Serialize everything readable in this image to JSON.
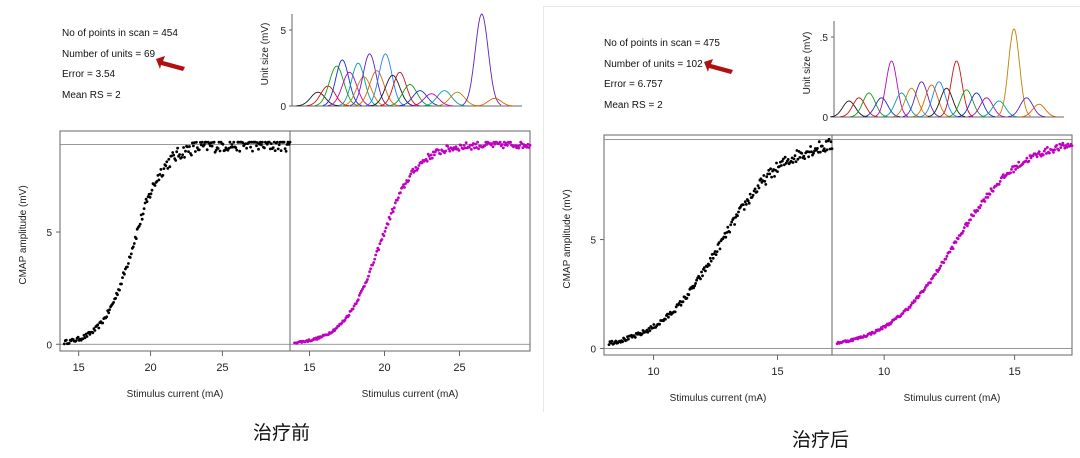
{
  "panels": [
    {
      "caption": "治疗前",
      "info": [
        "No of points in scan = 454",
        "Number of units = 69",
        "Error = 3.54",
        "Mean RS = 2"
      ],
      "inset": {
        "ylabel": "Unit size (mV)",
        "yticks": [
          "5",
          "0"
        ]
      },
      "main": {
        "ylabel": "CMAP amplitude (mV)",
        "xlabel_left": "Stimulus current (mA)",
        "xlabel_right": "Stimulus current (mA)",
        "yticks": [
          "0",
          "5"
        ],
        "xticks_left": [
          "15",
          "20",
          "25"
        ],
        "xticks_right": [
          "15",
          "20",
          "25"
        ]
      }
    },
    {
      "caption": "治疗后",
      "info": [
        "No of points in scan = 475",
        "Number of units = 102",
        "Error = 6.757",
        "Mean RS = 2"
      ],
      "inset": {
        "ylabel": "Unit size (mV)",
        "yticks": [
          ".5",
          "0"
        ]
      },
      "main": {
        "ylabel": "CMAP amplitude (mV)",
        "xlabel_left": "Stimulus current (mA)",
        "xlabel_right": "Stimulus current (mA)",
        "yticks": [
          "0",
          "5"
        ],
        "xticks_left": [
          "10",
          "15"
        ],
        "xticks_right": [
          "10",
          "15"
        ]
      }
    }
  ],
  "colors": {
    "measured": "#000000",
    "fitted": "#c000c0",
    "arrow": "#b01010",
    "axis": "#666666"
  },
  "chart_data": [
    {
      "type": "scatter",
      "title": "",
      "subplots": [
        {
          "name": "measured",
          "xlabel": "Stimulus current (mA)",
          "ylabel": "CMAP amplitude (mV)",
          "xlim": [
            13.7,
            29.7
          ],
          "ylim": [
            -0.3,
            9.5
          ],
          "sigmoid": {
            "x_start": 14.0,
            "x_end": 29.7,
            "midpoint": 18.8,
            "slope": 1.05,
            "max": 8.9
          }
        },
        {
          "name": "model",
          "xlabel": "Stimulus current (mA)",
          "ylabel": "CMAP amplitude (mV)",
          "xlim": [
            13.7,
            29.7
          ],
          "ylim": [
            -0.3,
            9.5
          ],
          "sigmoid": {
            "x_start": 14.0,
            "x_end": 29.7,
            "midpoint": 19.7,
            "slope": 1.2,
            "max": 8.9
          }
        }
      ],
      "inset": {
        "ylabel": "Unit size (mV)",
        "ylim": [
          0,
          6
        ],
        "x_range": [
          13.7,
          29.7
        ],
        "units": [
          {
            "c": 15.5,
            "h": 0.9,
            "w": 0.5
          },
          {
            "c": 16.2,
            "h": 1.3,
            "w": 0.5
          },
          {
            "c": 16.8,
            "h": 2.6,
            "w": 0.5
          },
          {
            "c": 17.2,
            "h": 3.0,
            "w": 0.45
          },
          {
            "c": 17.7,
            "h": 2.2,
            "w": 0.5
          },
          {
            "c": 18.3,
            "h": 2.8,
            "w": 0.45
          },
          {
            "c": 18.7,
            "h": 1.9,
            "w": 0.5
          },
          {
            "c": 19.1,
            "h": 3.4,
            "w": 0.45
          },
          {
            "c": 19.6,
            "h": 2.3,
            "w": 0.5
          },
          {
            "c": 20.2,
            "h": 3.4,
            "w": 0.45
          },
          {
            "c": 20.7,
            "h": 2.0,
            "w": 0.5
          },
          {
            "c": 21.2,
            "h": 2.2,
            "w": 0.45
          },
          {
            "c": 21.9,
            "h": 1.4,
            "w": 0.5
          },
          {
            "c": 22.6,
            "h": 1.0,
            "w": 0.5
          },
          {
            "c": 23.4,
            "h": 0.8,
            "w": 0.5
          },
          {
            "c": 24.3,
            "h": 1.0,
            "w": 0.5
          },
          {
            "c": 25.2,
            "h": 0.9,
            "w": 0.5
          },
          {
            "c": 26.9,
            "h": 6.0,
            "w": 0.45
          },
          {
            "c": 27.8,
            "h": 0.5,
            "w": 0.45
          }
        ]
      }
    },
    {
      "type": "scatter",
      "title": "",
      "subplots": [
        {
          "name": "measured",
          "xlabel": "Stimulus current (mA)",
          "ylabel": "CMAP amplitude (mV)",
          "xlim": [
            8.0,
            17.2
          ],
          "ylim": [
            -0.3,
            9.8
          ],
          "sigmoid": {
            "x_start": 8.2,
            "x_end": 17.2,
            "midpoint": 12.7,
            "slope": 1.25,
            "max": 9.6
          }
        },
        {
          "name": "model",
          "xlabel": "Stimulus current (mA)",
          "ylabel": "CMAP amplitude (mV)",
          "xlim": [
            8.0,
            17.2
          ],
          "ylim": [
            -0.3,
            9.8
          ],
          "sigmoid": {
            "x_start": 8.2,
            "x_end": 17.2,
            "midpoint": 12.7,
            "slope": 1.25,
            "max": 9.6
          }
        }
      ],
      "inset": {
        "ylabel": "Unit size (mV)",
        "ylim": [
          0,
          0.6
        ],
        "x_range": [
          8.0,
          17.2
        ],
        "units": [
          {
            "c": 8.6,
            "h": 0.1,
            "w": 0.25
          },
          {
            "c": 9.0,
            "h": 0.12,
            "w": 0.25
          },
          {
            "c": 9.4,
            "h": 0.15,
            "w": 0.25
          },
          {
            "c": 9.9,
            "h": 0.12,
            "w": 0.25
          },
          {
            "c": 10.3,
            "h": 0.35,
            "w": 0.22
          },
          {
            "c": 10.7,
            "h": 0.15,
            "w": 0.25
          },
          {
            "c": 11.1,
            "h": 0.18,
            "w": 0.25
          },
          {
            "c": 11.5,
            "h": 0.22,
            "w": 0.25
          },
          {
            "c": 11.9,
            "h": 0.2,
            "w": 0.25
          },
          {
            "c": 12.2,
            "h": 0.22,
            "w": 0.25
          },
          {
            "c": 12.5,
            "h": 0.18,
            "w": 0.25
          },
          {
            "c": 12.9,
            "h": 0.35,
            "w": 0.22
          },
          {
            "c": 13.3,
            "h": 0.17,
            "w": 0.25
          },
          {
            "c": 13.7,
            "h": 0.15,
            "w": 0.25
          },
          {
            "c": 14.1,
            "h": 0.12,
            "w": 0.25
          },
          {
            "c": 14.6,
            "h": 0.1,
            "w": 0.25
          },
          {
            "c": 15.2,
            "h": 0.55,
            "w": 0.22
          },
          {
            "c": 15.7,
            "h": 0.12,
            "w": 0.25
          },
          {
            "c": 16.2,
            "h": 0.08,
            "w": 0.25
          }
        ]
      }
    }
  ]
}
